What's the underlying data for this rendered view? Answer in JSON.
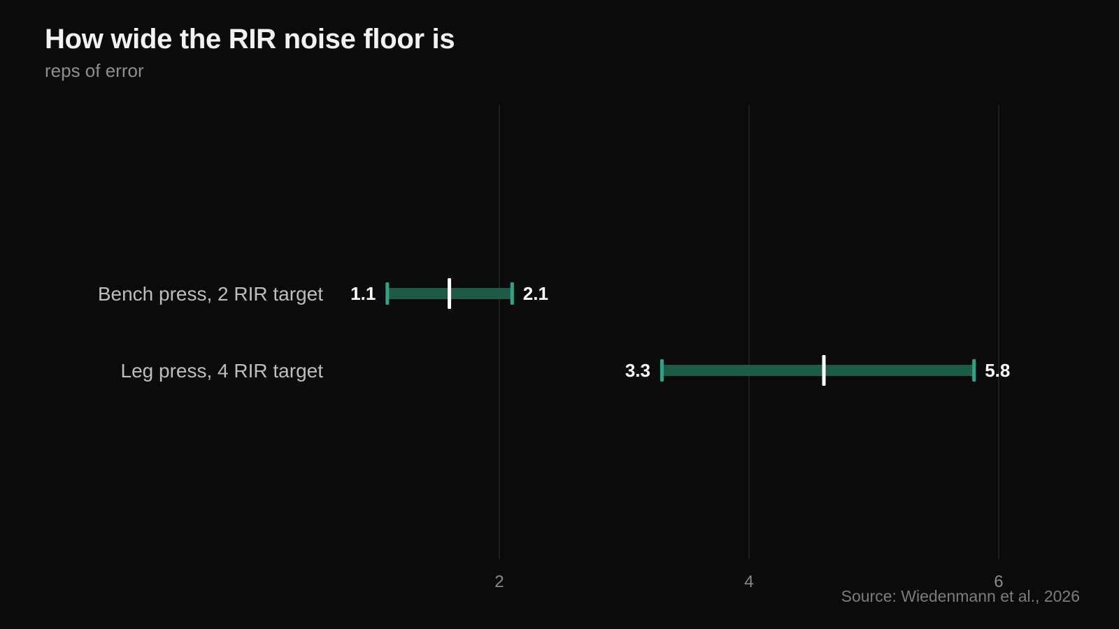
{
  "chart_data": {
    "type": "range_bar",
    "title": "How wide the RIR noise floor is",
    "subtitle": "reps of error",
    "source": "Source: Wiedenmann et al., 2026",
    "xlabel": "",
    "ylabel": "",
    "x_ticks": [
      2,
      4,
      6
    ],
    "x_range": [
      -2,
      6.6
    ],
    "grid": "vertical",
    "categories": [
      "Bench press, 2 RIR target",
      "Leg press, 4 RIR target"
    ],
    "ranges": [
      {
        "category": "Bench press, 2 RIR target",
        "low": 1.1,
        "mid": 1.6,
        "high": 2.1,
        "low_label": "1.1",
        "high_label": "2.1"
      },
      {
        "category": "Leg press, 4 RIR target",
        "low": 3.3,
        "mid": 4.6,
        "high": 5.8,
        "low_label": "3.3",
        "high_label": "5.8"
      }
    ],
    "colors": {
      "background": "#0b0b0b",
      "bar": "#1f5a48",
      "bar_caps": "#2fa383",
      "midpoint": "#ffffff",
      "grid": "#262626"
    }
  }
}
